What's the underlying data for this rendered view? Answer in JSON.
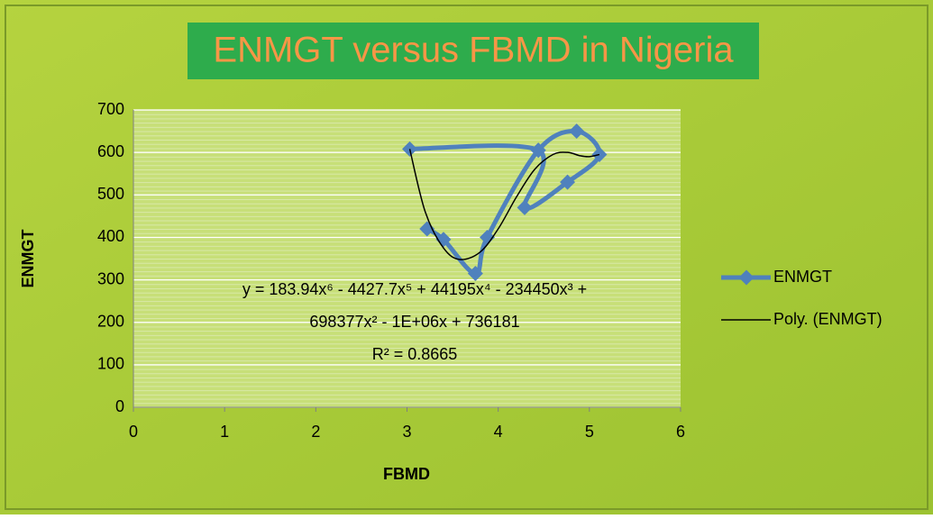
{
  "chart_data": {
    "type": "scatter",
    "title": "ENMGT versus FBMD in Nigeria",
    "x_label": "FBMD",
    "y_label": "ENMGT",
    "xlim": [
      0,
      6
    ],
    "xticks": [
      0,
      1,
      2,
      3,
      4,
      5,
      6
    ],
    "ylim": [
      0,
      700
    ],
    "yticks": [
      0,
      100,
      200,
      300,
      400,
      500,
      600,
      700
    ],
    "grid": true,
    "series": [
      {
        "name": "ENMGT",
        "color": "#4f81bd",
        "smooth": true,
        "x": [
          3.03,
          4.44,
          4.29,
          4.76,
          5.11,
          4.86,
          4.44,
          3.88,
          3.75,
          3.4,
          3.22
        ],
        "values": [
          608,
          605,
          470,
          530,
          595,
          650,
          605,
          400,
          315,
          395,
          420
        ]
      },
      {
        "name": "Poly. (ENMGT)",
        "color": "#000000",
        "smooth": true,
        "x": [
          3.03,
          3.2,
          3.4,
          3.58,
          3.8,
          4.0,
          4.2,
          4.4,
          4.6,
          4.76,
          4.9,
          5.0,
          5.11
        ],
        "values": [
          608,
          460,
          375,
          348,
          365,
          420,
          495,
          560,
          595,
          600,
          592,
          590,
          595
        ]
      }
    ],
    "equation": [
      "y = 183.94x⁶ - 4427.7x⁵ + 44195x⁴ - 234450x³ +",
      "698377x² - 1E+06x + 736181"
    ],
    "r_squared": "R² = 0.8665"
  }
}
